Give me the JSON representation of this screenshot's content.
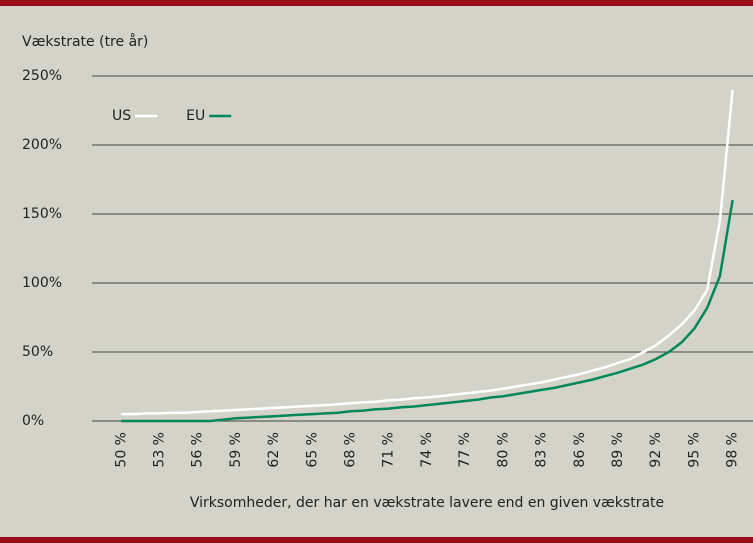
{
  "chart_data": {
    "type": "line",
    "ylabel": "Vækstrate (tre år)",
    "xlabel": "Virksomheder, der har en vækstrate lavere end en given vækstrate",
    "x": [
      50,
      51,
      52,
      53,
      54,
      55,
      56,
      57,
      58,
      59,
      60,
      61,
      62,
      63,
      64,
      65,
      66,
      67,
      68,
      69,
      70,
      71,
      72,
      73,
      74,
      75,
      76,
      77,
      78,
      79,
      80,
      81,
      82,
      83,
      84,
      85,
      86,
      87,
      88,
      89,
      90,
      91,
      92,
      93,
      94,
      95,
      96,
      97,
      98
    ],
    "series": [
      {
        "name": "US",
        "color": "#ffffff",
        "values": [
          5,
          5,
          5.5,
          5.5,
          6,
          6,
          6.5,
          7,
          7.5,
          8,
          8.5,
          9,
          9.5,
          10,
          10.5,
          11,
          11.5,
          12,
          13,
          13.5,
          14,
          15,
          15.5,
          16.5,
          17,
          18,
          19,
          20,
          21,
          22,
          23.5,
          25,
          26.5,
          28,
          30,
          32,
          34,
          36.5,
          39,
          42,
          45,
          50,
          55,
          62,
          70,
          80,
          95,
          145,
          240
        ]
      },
      {
        "name": "EU",
        "color": "#00875a",
        "values": [
          0,
          0,
          0,
          0,
          0,
          0,
          0,
          0,
          1,
          2,
          2.5,
          3,
          3.5,
          4,
          4.5,
          5,
          5.5,
          6,
          7,
          7.5,
          8.5,
          9,
          10,
          10.5,
          11.5,
          12.5,
          13.5,
          14.5,
          15.5,
          17,
          18,
          19.5,
          21,
          22.5,
          24,
          26,
          28,
          30,
          32.5,
          35,
          38,
          41,
          45,
          50,
          57,
          67,
          82,
          105,
          160
        ]
      }
    ],
    "xlim": [
      47.7,
      99.6
    ],
    "xticks": [
      {
        "value": 50,
        "label": "50 %"
      },
      {
        "value": 53,
        "label": "53 %"
      },
      {
        "value": 56,
        "label": "56 %"
      },
      {
        "value": 59,
        "label": "59 %"
      },
      {
        "value": 62,
        "label": "62 %"
      },
      {
        "value": 65,
        "label": "65 %"
      },
      {
        "value": 68,
        "label": "68 %"
      },
      {
        "value": 71,
        "label": "71 %"
      },
      {
        "value": 74,
        "label": "74 %"
      },
      {
        "value": 77,
        "label": "77 %"
      },
      {
        "value": 80,
        "label": "80 %"
      },
      {
        "value": 83,
        "label": "83 %"
      },
      {
        "value": 86,
        "label": "86 %"
      },
      {
        "value": 89,
        "label": "89 %"
      },
      {
        "value": 92,
        "label": "92 %"
      },
      {
        "value": 95,
        "label": "95 %"
      },
      {
        "value": 98,
        "label": "98 %"
      }
    ],
    "ylim": [
      0,
      250
    ],
    "yticks": [
      {
        "value": 0,
        "label": "0%"
      },
      {
        "value": 50,
        "label": "50%"
      },
      {
        "value": 100,
        "label": "100%"
      },
      {
        "value": 150,
        "label": "150%"
      },
      {
        "value": 200,
        "label": "200%"
      },
      {
        "value": 250,
        "label": "250%"
      }
    ],
    "grid": true
  }
}
